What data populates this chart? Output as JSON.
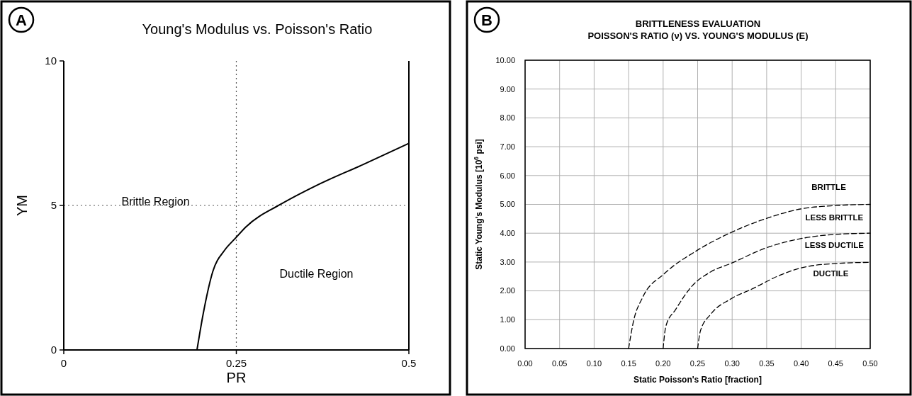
{
  "chart_data": [
    {
      "type": "line",
      "title": "Young's Modulus vs. Poisson's Ratio",
      "xlabel": "PR",
      "ylabel": "YM",
      "xlim": [
        0,
        0.5
      ],
      "ylim": [
        0,
        10
      ],
      "xticks": [
        0,
        0.25,
        0.5
      ],
      "yticks": [
        0,
        5,
        10
      ],
      "line_style": "solid",
      "ref_lines": [
        {
          "axis": "x",
          "value": 0.25,
          "line_style": "dotted"
        },
        {
          "axis": "y",
          "value": 5,
          "line_style": "dotted"
        }
      ],
      "annotations": [
        "A",
        "Brittle Region",
        "Ductile Region"
      ],
      "series": [
        {
          "color": "#000000",
          "x": [
            0.193,
            0.202,
            0.216,
            0.233,
            0.248,
            0.264,
            0.315,
            0.366,
            0.434,
            0.5
          ],
          "values": [
            0,
            1.25,
            2.72,
            3.45,
            3.85,
            4.26,
            5.05,
            5.69,
            6.42,
            7.15
          ]
        }
      ]
    },
    {
      "type": "line",
      "title": "BRITTLENESS EVALUATION",
      "subtitle": "POISSON'S RATIO (ν)  VS. YOUNG'S MODULUS (E)",
      "xlabel": "Static Poisson's Ratio [fraction]",
      "ylabel": "Static Young's  Modulus [10$^{6}$ psi]",
      "xlim": [
        0,
        0.5
      ],
      "ylim": [
        0,
        10
      ],
      "xticks": [
        {
          "value": 0,
          "label": "0.00"
        },
        {
          "value": 0.05,
          "label": "0.05"
        },
        {
          "value": 0.1,
          "label": "0.10"
        },
        {
          "value": 0.15,
          "label": "0.15"
        },
        {
          "value": 0.2,
          "label": "0.20"
        },
        {
          "value": 0.25,
          "label": "0.25"
        },
        {
          "value": 0.3,
          "label": "0.30"
        },
        {
          "value": 0.35,
          "label": "0.35"
        },
        {
          "value": 0.4,
          "label": "0.40"
        },
        {
          "value": 0.45,
          "label": "0.45"
        },
        {
          "value": 0.5,
          "label": "0.50"
        }
      ],
      "yticks": [
        {
          "value": 0,
          "label": "0.00"
        },
        {
          "value": 1,
          "label": "1.00"
        },
        {
          "value": 2,
          "label": "2.00"
        },
        {
          "value": 3,
          "label": "3.00"
        },
        {
          "value": 4,
          "label": "4.00"
        },
        {
          "value": 5,
          "label": "5.00"
        },
        {
          "value": 6,
          "label": "6.00"
        },
        {
          "value": 7,
          "label": "7.00"
        },
        {
          "value": 8,
          "label": "8.00"
        },
        {
          "value": 9,
          "label": "9.00"
        },
        {
          "value": 10,
          "label": "10.00"
        }
      ],
      "grid": true,
      "line_style": "dashed",
      "annotations": [
        "B",
        "BRITTLE",
        "LESS BRITTLE",
        "LESS DUCTILE",
        "DUCTILE"
      ],
      "series": [
        {
          "color": "#000000",
          "x": [
            0.15,
            0.157,
            0.17,
            0.201,
            0.249,
            0.298,
            0.348,
            0.399,
            0.45,
            0.5
          ],
          "values": [
            0,
            0.94,
            1.76,
            2.58,
            3.4,
            4.02,
            4.5,
            4.84,
            4.96,
            5.0
          ]
        },
        {
          "color": "#000000",
          "x": [
            0.2,
            0.204,
            0.218,
            0.242,
            0.269,
            0.298,
            0.348,
            0.399,
            0.45,
            0.5
          ],
          "values": [
            0,
            0.78,
            1.35,
            2.17,
            2.66,
            2.95,
            3.48,
            3.81,
            3.96,
            4.0
          ]
        },
        {
          "color": "#000000",
          "x": [
            0.25,
            0.254,
            0.269,
            0.298,
            0.331,
            0.365,
            0.399,
            0.45,
            0.5
          ],
          "values": [
            0,
            0.61,
            1.19,
            1.72,
            2.09,
            2.5,
            2.79,
            2.95,
            2.99
          ]
        }
      ]
    }
  ]
}
